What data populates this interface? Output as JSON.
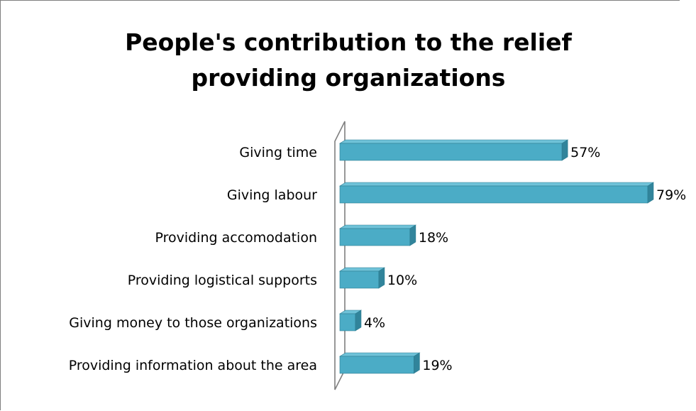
{
  "chart_data": {
    "type": "bar",
    "orientation": "horizontal",
    "title": [
      "People's contribution to the relief",
      "providing organizations"
    ],
    "categories": [
      "Giving time",
      "Giving labour",
      "Providing accomodation",
      "Providing logistical supports",
      "Giving money to those organizations",
      "Providing information about the area"
    ],
    "values": [
      57,
      79,
      18,
      10,
      4,
      19
    ],
    "data_labels": [
      "57%",
      "79%",
      "18%",
      "10%",
      "4%",
      "19%"
    ],
    "value_unit": "%",
    "xlim": [
      0,
      79
    ],
    "xlabel": "",
    "ylabel": "",
    "grid": false,
    "legend": "none",
    "style": "3d",
    "colors": {
      "bar_front": "#4bacc6",
      "bar_top": "#6fc2d8",
      "bar_side": "#31849b",
      "bar_edge": "#2c7c91",
      "axis_wall": "#7f7f7f",
      "text": "#000000"
    }
  }
}
